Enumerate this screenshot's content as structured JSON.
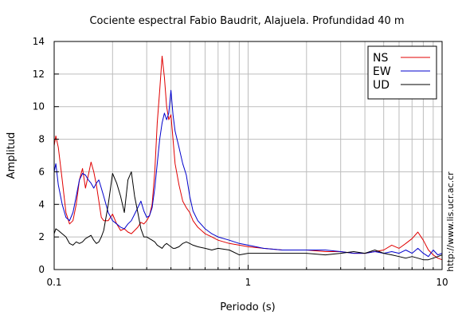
{
  "chart_data": {
    "type": "line",
    "title": "Cociente espectral Fabio Baudrit, Alajuela. Profundidad 40 m",
    "xlabel": "Periodo (s)",
    "ylabel": "Amplitud",
    "xscale": "log",
    "xlim": [
      0.1,
      10
    ],
    "ylim": [
      0,
      14
    ],
    "xticks": [
      0.1,
      1,
      10
    ],
    "xtick_labels": [
      "0.1",
      "1",
      "10"
    ],
    "yticks": [
      0,
      2,
      4,
      6,
      8,
      10,
      12,
      14
    ],
    "ytick_labels": [
      "0",
      "2",
      "4",
      "6",
      "8",
      "10",
      "12",
      "14"
    ],
    "grid": true,
    "legend_position": "top-right",
    "credit": "http://www.lis.ucr.ac.cr",
    "colors": {
      "NS": "#e00000",
      "EW": "#0000cc",
      "UD": "#000000"
    },
    "series": [
      {
        "name": "NS",
        "x": [
          0.1,
          0.102,
          0.105,
          0.11,
          0.115,
          0.12,
          0.125,
          0.13,
          0.135,
          0.14,
          0.145,
          0.15,
          0.155,
          0.16,
          0.165,
          0.17,
          0.175,
          0.18,
          0.19,
          0.2,
          0.21,
          0.22,
          0.23,
          0.24,
          0.25,
          0.26,
          0.27,
          0.28,
          0.29,
          0.3,
          0.31,
          0.32,
          0.33,
          0.34,
          0.35,
          0.36,
          0.37,
          0.38,
          0.39,
          0.4,
          0.41,
          0.42,
          0.44,
          0.46,
          0.48,
          0.5,
          0.52,
          0.55,
          0.6,
          0.65,
          0.7,
          0.8,
          0.9,
          1.0,
          1.2,
          1.5,
          2.0,
          2.5,
          3.0,
          3.5,
          4.0,
          4.5,
          5.0,
          5.5,
          6.0,
          6.5,
          7.0,
          7.5,
          8.0,
          8.5,
          9.0,
          9.5,
          10.0
        ],
        "y": [
          7.6,
          8.2,
          7.5,
          5.5,
          3.5,
          2.8,
          3.0,
          4.0,
          5.5,
          6.2,
          5.0,
          5.8,
          6.6,
          6.0,
          5.2,
          4.2,
          3.2,
          3.0,
          3.0,
          3.4,
          2.8,
          2.4,
          2.5,
          2.3,
          2.2,
          2.4,
          2.6,
          2.9,
          2.8,
          3.0,
          3.3,
          4.0,
          6.0,
          9.0,
          11.0,
          13.1,
          11.8,
          10.0,
          9.2,
          9.5,
          8.0,
          6.5,
          5.2,
          4.2,
          3.8,
          3.5,
          3.0,
          2.6,
          2.2,
          2.0,
          1.8,
          1.6,
          1.5,
          1.4,
          1.3,
          1.2,
          1.2,
          1.1,
          1.1,
          1.0,
          1.0,
          1.1,
          1.2,
          1.5,
          1.3,
          1.6,
          1.9,
          2.3,
          1.8,
          1.2,
          0.9,
          0.7,
          0.6
        ]
      },
      {
        "name": "EW",
        "x": [
          0.1,
          0.102,
          0.105,
          0.11,
          0.115,
          0.12,
          0.125,
          0.13,
          0.135,
          0.14,
          0.145,
          0.15,
          0.155,
          0.16,
          0.165,
          0.17,
          0.175,
          0.18,
          0.19,
          0.2,
          0.21,
          0.22,
          0.23,
          0.24,
          0.25,
          0.26,
          0.27,
          0.28,
          0.29,
          0.3,
          0.31,
          0.32,
          0.33,
          0.34,
          0.35,
          0.36,
          0.37,
          0.38,
          0.39,
          0.4,
          0.41,
          0.42,
          0.44,
          0.46,
          0.48,
          0.5,
          0.52,
          0.55,
          0.6,
          0.65,
          0.7,
          0.8,
          0.9,
          1.0,
          1.2,
          1.5,
          2.0,
          2.5,
          3.0,
          3.5,
          4.0,
          4.5,
          5.0,
          5.5,
          6.0,
          6.5,
          7.0,
          7.5,
          8.0,
          8.5,
          9.0,
          9.5,
          10.0
        ],
        "y": [
          6.0,
          6.5,
          5.2,
          4.0,
          3.2,
          3.0,
          3.5,
          4.5,
          5.5,
          5.9,
          5.8,
          5.5,
          5.3,
          5.0,
          5.3,
          5.5,
          5.0,
          4.5,
          3.5,
          3.0,
          2.8,
          2.6,
          2.5,
          2.8,
          3.0,
          3.4,
          3.8,
          4.2,
          3.6,
          3.2,
          3.3,
          3.8,
          5.0,
          6.5,
          8.0,
          9.0,
          9.6,
          9.2,
          9.6,
          11.0,
          9.5,
          8.5,
          7.5,
          6.5,
          5.8,
          4.5,
          3.6,
          3.0,
          2.5,
          2.2,
          2.0,
          1.8,
          1.6,
          1.5,
          1.3,
          1.2,
          1.2,
          1.2,
          1.1,
          1.0,
          1.0,
          1.1,
          1.0,
          1.1,
          1.0,
          1.2,
          1.0,
          1.3,
          1.0,
          0.8,
          1.2,
          0.9,
          1.0
        ]
      },
      {
        "name": "UD",
        "x": [
          0.1,
          0.102,
          0.105,
          0.11,
          0.115,
          0.12,
          0.125,
          0.13,
          0.135,
          0.14,
          0.145,
          0.15,
          0.155,
          0.16,
          0.165,
          0.17,
          0.175,
          0.18,
          0.19,
          0.2,
          0.21,
          0.22,
          0.23,
          0.24,
          0.25,
          0.26,
          0.27,
          0.28,
          0.29,
          0.3,
          0.31,
          0.32,
          0.33,
          0.34,
          0.35,
          0.36,
          0.37,
          0.38,
          0.39,
          0.4,
          0.41,
          0.42,
          0.44,
          0.46,
          0.48,
          0.5,
          0.52,
          0.55,
          0.6,
          0.65,
          0.7,
          0.8,
          0.9,
          1.0,
          1.2,
          1.5,
          2.0,
          2.5,
          3.0,
          3.5,
          4.0,
          4.5,
          5.0,
          5.5,
          6.0,
          6.5,
          7.0,
          7.5,
          8.0,
          8.5,
          9.0,
          9.5,
          10.0
        ],
        "y": [
          2.2,
          2.5,
          2.4,
          2.2,
          2.0,
          1.6,
          1.5,
          1.7,
          1.6,
          1.7,
          1.9,
          2.0,
          2.1,
          1.8,
          1.6,
          1.7,
          2.0,
          2.4,
          4.0,
          5.9,
          5.3,
          4.5,
          3.5,
          5.5,
          6.0,
          4.5,
          3.5,
          2.5,
          2.0,
          2.0,
          1.9,
          1.8,
          1.7,
          1.5,
          1.4,
          1.3,
          1.5,
          1.6,
          1.5,
          1.4,
          1.3,
          1.3,
          1.4,
          1.6,
          1.7,
          1.6,
          1.5,
          1.4,
          1.3,
          1.2,
          1.3,
          1.2,
          0.9,
          1.0,
          1.0,
          1.0,
          1.0,
          0.9,
          1.0,
          1.1,
          1.0,
          1.2,
          1.0,
          0.9,
          0.8,
          0.7,
          0.8,
          0.7,
          0.6,
          0.6,
          0.7,
          0.8,
          0.9
        ]
      }
    ]
  }
}
